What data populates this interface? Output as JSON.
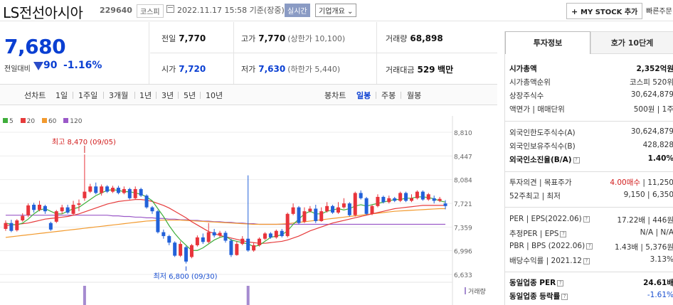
{
  "header": {
    "company_name": "LS전선아시아",
    "code": "229640",
    "market": "코스피",
    "timestamp": "2022.11.17 15:58 기준(장중)",
    "realtime_badge": "실시간",
    "company_info_btn": "기업개요 ⌄",
    "mystock_btn": "MY STOCK 추가",
    "fast_order": "빠른주문"
  },
  "price": {
    "current": "7,680",
    "change_label": "전일대비",
    "change_amount": "90",
    "change_pct": "-1.16%"
  },
  "summary": {
    "prev_label": "전일",
    "prev_value": "7,770",
    "high_label": "고가",
    "high_value": "7,770",
    "upper_limit": "(상한가 10,100)",
    "volume_label": "거래량",
    "volume_value": "68,898",
    "open_label": "시가",
    "open_value": "7,720",
    "low_label": "저가",
    "low_value": "7,630",
    "lower_limit": "(하한가 5,440)",
    "amount_label": "거래대금",
    "amount_value": "529",
    "amount_unit": "백만"
  },
  "period_tabs": {
    "line_label": "선차트",
    "items": [
      "1일",
      "1주일",
      "3개월",
      "1년",
      "3년",
      "5년",
      "10년"
    ],
    "candle_label": "봉차트",
    "candle_items": [
      "일봉",
      "주봉",
      "월봉"
    ],
    "active_candle": "일봉"
  },
  "legend": [
    {
      "name": "5",
      "color": "#3fae3b"
    },
    {
      "name": "20",
      "color": "#e63b3b"
    },
    {
      "name": "60",
      "color": "#f29a2e"
    },
    {
      "name": "120",
      "color": "#9b59c8"
    }
  ],
  "chart_data": {
    "type": "candlestick",
    "y_ticks": [
      "8,810",
      "8,447",
      "8,084",
      "7,721",
      "7,359",
      "6,996",
      "6,633"
    ],
    "ylim": [
      6633,
      8810
    ],
    "annotations": {
      "high": "최고 8,470 (09/05)",
      "low": "최저 6,800 (09/30)"
    },
    "volume_label": "거래량",
    "candles": [
      {
        "o": 7330,
        "c": 7420,
        "h": 7460,
        "l": 7300
      },
      {
        "o": 7420,
        "c": 7300,
        "h": 7470,
        "l": 7280
      },
      {
        "o": 7310,
        "c": 7460,
        "h": 7480,
        "l": 7290
      },
      {
        "o": 7460,
        "c": 7530,
        "h": 7570,
        "l": 7440
      },
      {
        "o": 7540,
        "c": 7690,
        "h": 7720,
        "l": 7510
      },
      {
        "o": 7700,
        "c": 7620,
        "h": 7730,
        "l": 7580
      },
      {
        "o": 7620,
        "c": 7700,
        "h": 7760,
        "l": 7600
      },
      {
        "o": 7680,
        "c": 7600,
        "h": 7700,
        "l": 7560
      },
      {
        "o": 7420,
        "c": 7320,
        "h": 7440,
        "l": 7300
      },
      {
        "o": 7440,
        "c": 7600,
        "h": 7620,
        "l": 7420
      },
      {
        "o": 7600,
        "c": 7660,
        "h": 7700,
        "l": 7560
      },
      {
        "o": 7660,
        "c": 7580,
        "h": 7700,
        "l": 7560
      },
      {
        "o": 7560,
        "c": 7700,
        "h": 7760,
        "l": 7540
      },
      {
        "o": 7700,
        "c": 7720,
        "h": 7780,
        "l": 7600
      },
      {
        "o": 7800,
        "c": 7900,
        "h": 8470,
        "l": 7760
      },
      {
        "o": 7900,
        "c": 7980,
        "h": 8020,
        "l": 7880
      },
      {
        "o": 7980,
        "c": 7880,
        "h": 8040,
        "l": 7860
      },
      {
        "o": 7880,
        "c": 7980,
        "h": 8010,
        "l": 7840
      },
      {
        "o": 7980,
        "c": 7900,
        "h": 8000,
        "l": 7880
      },
      {
        "o": 7900,
        "c": 7960,
        "h": 7990,
        "l": 7880
      },
      {
        "o": 7960,
        "c": 7880,
        "h": 7990,
        "l": 7860
      },
      {
        "o": 7880,
        "c": 7940,
        "h": 7980,
        "l": 7860
      },
      {
        "o": 7940,
        "c": 7800,
        "h": 7960,
        "l": 7780
      },
      {
        "o": 7800,
        "c": 7940,
        "h": 7980,
        "l": 7780
      },
      {
        "o": 7940,
        "c": 7840,
        "h": 7960,
        "l": 7820
      },
      {
        "o": 7840,
        "c": 7660,
        "h": 7860,
        "l": 7640
      },
      {
        "o": 7660,
        "c": 7600,
        "h": 7680,
        "l": 7560
      },
      {
        "o": 7600,
        "c": 7280,
        "h": 7620,
        "l": 7260
      },
      {
        "o": 7280,
        "c": 7220,
        "h": 7320,
        "l": 7180
      },
      {
        "o": 7220,
        "c": 7120,
        "h": 7240,
        "l": 7080
      },
      {
        "o": 7120,
        "c": 6920,
        "h": 7140,
        "l": 6900
      },
      {
        "o": 6920,
        "c": 7100,
        "h": 7140,
        "l": 6900
      },
      {
        "o": 7050,
        "c": 6830,
        "h": 7070,
        "l": 6800
      },
      {
        "o": 6900,
        "c": 7080,
        "h": 7100,
        "l": 6880
      },
      {
        "o": 7080,
        "c": 7200,
        "h": 7230,
        "l": 7060
      },
      {
        "o": 7200,
        "c": 7130,
        "h": 7260,
        "l": 7100
      },
      {
        "o": 7130,
        "c": 7280,
        "h": 7420,
        "l": 7110
      },
      {
        "o": 7280,
        "c": 7230,
        "h": 7330,
        "l": 7200
      },
      {
        "o": 7230,
        "c": 7270,
        "h": 7300,
        "l": 7200
      },
      {
        "o": 7270,
        "c": 7150,
        "h": 7300,
        "l": 7120
      },
      {
        "o": 7150,
        "c": 6930,
        "h": 7180,
        "l": 6900
      },
      {
        "o": 6930,
        "c": 7100,
        "h": 7140,
        "l": 6920
      },
      {
        "o": 7100,
        "c": 7180,
        "h": 7220,
        "l": 7080
      },
      {
        "o": 7180,
        "c": 7000,
        "h": 8150,
        "l": 6980
      },
      {
        "o": 7000,
        "c": 7080,
        "h": 7120,
        "l": 6980
      },
      {
        "o": 7080,
        "c": 7180,
        "h": 7200,
        "l": 7060
      },
      {
        "o": 7180,
        "c": 7260,
        "h": 7280,
        "l": 7160
      },
      {
        "o": 7260,
        "c": 7200,
        "h": 7280,
        "l": 7180
      },
      {
        "o": 7200,
        "c": 7300,
        "h": 7320,
        "l": 7180
      },
      {
        "o": 7300,
        "c": 7220,
        "h": 7330,
        "l": 7200
      },
      {
        "o": 7220,
        "c": 7560,
        "h": 7580,
        "l": 7200
      },
      {
        "o": 7560,
        "c": 7660,
        "h": 7720,
        "l": 7540
      },
      {
        "o": 7660,
        "c": 7420,
        "h": 7680,
        "l": 7400
      },
      {
        "o": 7440,
        "c": 7600,
        "h": 7660,
        "l": 7420
      },
      {
        "o": 7600,
        "c": 7640,
        "h": 7680,
        "l": 7580
      },
      {
        "o": 7640,
        "c": 7450,
        "h": 7700,
        "l": 7420
      },
      {
        "o": 7450,
        "c": 7600,
        "h": 7660,
        "l": 7440
      },
      {
        "o": 7600,
        "c": 7680,
        "h": 7740,
        "l": 7580
      },
      {
        "o": 7680,
        "c": 7580,
        "h": 7700,
        "l": 7560
      },
      {
        "o": 7580,
        "c": 7660,
        "h": 7740,
        "l": 7560
      },
      {
        "o": 7660,
        "c": 7720,
        "h": 7800,
        "l": 7640
      },
      {
        "o": 7720,
        "c": 7540,
        "h": 7740,
        "l": 7520
      },
      {
        "o": 7540,
        "c": 7880,
        "h": 7900,
        "l": 7520
      },
      {
        "o": 7880,
        "c": 7800,
        "h": 7920,
        "l": 7780
      },
      {
        "o": 7800,
        "c": 7560,
        "h": 7820,
        "l": 7540
      },
      {
        "o": 7560,
        "c": 7680,
        "h": 7700,
        "l": 7540
      },
      {
        "o": 7680,
        "c": 7820,
        "h": 7860,
        "l": 7660
      },
      {
        "o": 7820,
        "c": 7740,
        "h": 7840,
        "l": 7720
      },
      {
        "o": 7740,
        "c": 7800,
        "h": 7840,
        "l": 7720
      },
      {
        "o": 7800,
        "c": 7760,
        "h": 7820,
        "l": 7740
      },
      {
        "o": 7760,
        "c": 7880,
        "h": 7900,
        "l": 7740
      },
      {
        "o": 7880,
        "c": 7760,
        "h": 7900,
        "l": 7740
      },
      {
        "o": 7760,
        "c": 7800,
        "h": 7860,
        "l": 7740
      },
      {
        "o": 7800,
        "c": 7900,
        "h": 7920,
        "l": 7780
      },
      {
        "o": 7900,
        "c": 7780,
        "h": 7920,
        "l": 7760
      },
      {
        "o": 7780,
        "c": 7860,
        "h": 7880,
        "l": 7760
      },
      {
        "o": 7800,
        "c": 7760,
        "h": 7840,
        "l": 7720
      },
      {
        "o": 7760,
        "c": 7790,
        "h": 7820,
        "l": 7740
      },
      {
        "o": 7720,
        "c": 7680,
        "h": 7770,
        "l": 7630
      }
    ],
    "ma5": [
      7420,
      7400,
      7390,
      7420,
      7480,
      7560,
      7620,
      7640,
      7600,
      7560,
      7560,
      7600,
      7640,
      7660,
      7720,
      7780,
      7840,
      7880,
      7920,
      7930,
      7920,
      7900,
      7900,
      7880,
      7860,
      7820,
      7760,
      7640,
      7520,
      7380,
      7260,
      7160,
      7080,
      7000,
      7000,
      7040,
      7100,
      7160,
      7200,
      7220,
      7160,
      7140,
      7120,
      7100,
      7060,
      7080,
      7140,
      7200,
      7220,
      7240,
      7300,
      7400,
      7480,
      7560,
      7600,
      7560,
      7560,
      7600,
      7620,
      7640,
      7620,
      7640,
      7680,
      7700,
      7680,
      7700,
      7720,
      7740,
      7760,
      7780,
      7780,
      7800,
      7800,
      7820,
      7820,
      7810,
      7790,
      7760,
      7740
    ],
    "ma20": [
      7380,
      7390,
      7400,
      7410,
      7420,
      7440,
      7460,
      7480,
      7490,
      7500,
      7510,
      7520,
      7540,
      7560,
      7590,
      7620,
      7650,
      7680,
      7710,
      7730,
      7750,
      7760,
      7770,
      7780,
      7780,
      7770,
      7750,
      7720,
      7690,
      7650,
      7600,
      7550,
      7500,
      7440,
      7390,
      7340,
      7290,
      7260,
      7230,
      7210,
      7190,
      7170,
      7150,
      7130,
      7120,
      7110,
      7110,
      7120,
      7130,
      7140,
      7160,
      7190,
      7220,
      7260,
      7300,
      7330,
      7360,
      7390,
      7420,
      7440,
      7460,
      7480,
      7500,
      7520,
      7540,
      7560,
      7580,
      7600,
      7620,
      7640,
      7650,
      7660,
      7670,
      7680,
      7690,
      7690,
      7690,
      7690,
      7690
    ],
    "ma60": [
      7200,
      7210,
      7220,
      7230,
      7240,
      7250,
      7260,
      7270,
      7280,
      7290,
      7300,
      7310,
      7320,
      7330,
      7340,
      7350,
      7360,
      7370,
      7380,
      7390,
      7400,
      7410,
      7420,
      7430,
      7440,
      7450,
      7455,
      7460,
      7465,
      7465,
      7465,
      7465,
      7460,
      7455,
      7450,
      7445,
      7440,
      7435,
      7430,
      7425,
      7420,
      7415,
      7410,
      7405,
      7400,
      7400,
      7400,
      7400,
      7400,
      7405,
      7410,
      7420,
      7430,
      7440,
      7450,
      7460,
      7470,
      7480,
      7490,
      7500,
      7510,
      7520,
      7530,
      7540,
      7550,
      7560,
      7570,
      7580,
      7590,
      7600,
      7605,
      7610,
      7615,
      7620,
      7625,
      7630,
      7635,
      7640,
      7640
    ],
    "ma120": [
      7540,
      7540,
      7540,
      7540,
      7540,
      7540,
      7540,
      7540,
      7540,
      7540,
      7540,
      7540,
      7540,
      7540,
      7540,
      7540,
      7540,
      7540,
      7540,
      7530,
      7530,
      7520,
      7520,
      7510,
      7510,
      7500,
      7500,
      7490,
      7490,
      7480,
      7480,
      7470,
      7470,
      7460,
      7460,
      7450,
      7450,
      7440,
      7440,
      7430,
      7430,
      7420,
      7420,
      7410,
      7410,
      7400,
      7400,
      7400,
      7400,
      7400,
      7400,
      7400,
      7400,
      7400,
      7400,
      7400,
      7400,
      7400,
      7400,
      7400,
      7400,
      7400,
      7400,
      7400,
      7400,
      7400,
      7400,
      7400,
      7400,
      7400,
      7400,
      7400,
      7400,
      7400,
      7400,
      7400,
      7400,
      7400,
      7400
    ],
    "volume_spikes": [
      14,
      43
    ]
  },
  "invest_panel": {
    "tab_active": "투자정보",
    "tab_other": "호가 10단계",
    "market_cap_label": "시가총액",
    "market_cap_value": "2,352억원",
    "cap_rank_label": "시가총액순위",
    "cap_rank_value": "코스피 520위",
    "shares_label": "상장주식수",
    "shares_value": "30,624,879",
    "face_label": "액면가 | 매매단위",
    "face_value": "500원",
    "unit_value": "1주",
    "foreign_limit_label": "외국인한도주식수(A)",
    "foreign_limit_value": "30,624,879",
    "foreign_hold_label": "외국인보유주식수(B)",
    "foreign_hold_value": "428,828",
    "foreign_ratio_label": "외국인소진율(B/A)",
    "foreign_ratio_value": "1.40%",
    "opinion_label": "투자의견 | 목표주가",
    "opinion_value": "4.00매수",
    "target_value": "11,250",
    "range_label": "52주최고 | 최저",
    "high52": "9,150",
    "low52": "6,350",
    "per_label": "PER | EPS(2022.06)",
    "per_value": "17.22배",
    "eps_value": "446원",
    "est_per_label": "추정PER | EPS",
    "est_per_value": "N/A",
    "est_eps_value": "N/A",
    "pbr_label": "PBR | BPS (2022.06)",
    "pbr_value": "1.43배",
    "bps_value": "5,376원",
    "div_label": "배당수익률 | 2021.12",
    "div_value": "3.13%",
    "sector_per_label": "동일업종 PER",
    "sector_per_value": "24.61배",
    "sector_chg_label": "동일업종 등락률",
    "sector_chg_value": "-1.61%"
  }
}
